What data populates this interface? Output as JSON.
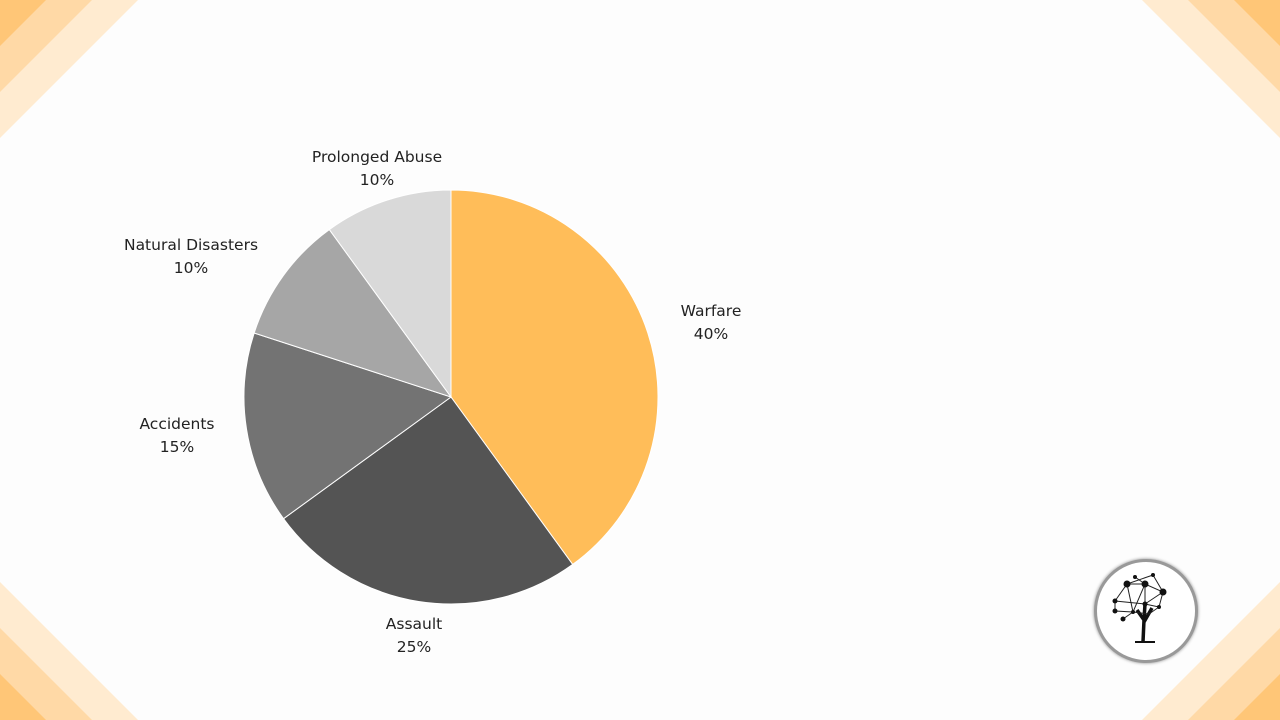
{
  "chart_data": {
    "type": "pie",
    "start_angle_deg": 0,
    "direction": "clockwise",
    "slices": [
      {
        "label": "Warfare",
        "value": 40,
        "value_label": "40%",
        "color": "#FFBD59"
      },
      {
        "label": "Assault",
        "value": 25,
        "value_label": "25%",
        "color": "#545454"
      },
      {
        "label": "Accidents",
        "value": 15,
        "value_label": "15%",
        "color": "#737373"
      },
      {
        "label": "Natural Disasters",
        "value": 10,
        "value_label": "10%",
        "color": "#A6A6A6"
      },
      {
        "label": "Prolonged Abuse",
        "value": 10,
        "value_label": "10%",
        "color": "#D9D9D9"
      }
    ]
  },
  "decor": {
    "accent_colors": [
      "#FFC677",
      "#FFD9A6",
      "#FFEBD0"
    ],
    "logo": "network-tree-logo"
  }
}
